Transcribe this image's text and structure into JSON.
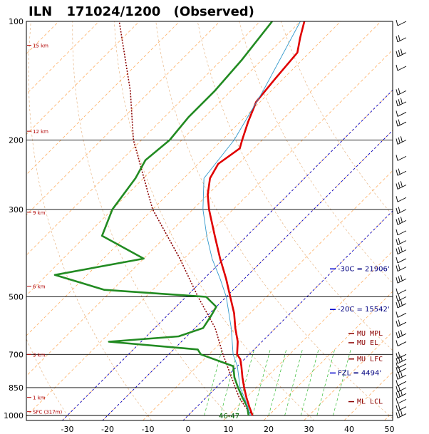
{
  "title": {
    "station": "ILN",
    "datetime": "171024/1200",
    "label": "(Observed)"
  },
  "chart_data": {
    "type": "line",
    "subtype": "skew-t log-p sounding",
    "pressure_axis": {
      "scale": "log",
      "range_hPa": [
        1000,
        100
      ],
      "isobar_lines": [
        1000,
        850,
        700,
        500,
        300,
        200
      ],
      "tick_labels": [
        "100",
        "200",
        "300",
        "500",
        "700",
        "850",
        "1000"
      ]
    },
    "temperature_axis": {
      "unit": "C",
      "range": [
        -40,
        50
      ],
      "tick_labels": [
        "-30",
        "-20",
        "-10",
        "0",
        "10",
        "20",
        "30",
        "40",
        "50"
      ]
    },
    "height_markers": [
      "SFC (317m)",
      "1 km",
      "3 km",
      "6 km",
      "9 km",
      "12 km",
      "15 km"
    ],
    "series": [
      {
        "color": "#e00000",
        "points": [
          {
            "p": 1000,
            "t": 16.0
          },
          {
            "p": 950,
            "t": 13.0
          },
          {
            "p": 900,
            "t": 10.0
          },
          {
            "p": 850,
            "t": 7.0
          },
          {
            "p": 800,
            "t": 4.0
          },
          {
            "p": 750,
            "t": 1.0
          },
          {
            "p": 720,
            "t": -1.0
          },
          {
            "p": 700,
            "t": -3.0
          },
          {
            "p": 650,
            "t": -6.0
          },
          {
            "p": 600,
            "t": -10.0
          },
          {
            "p": 550,
            "t": -14.0
          },
          {
            "p": 500,
            "t": -19.0
          },
          {
            "p": 450,
            "t": -24.5
          },
          {
            "p": 400,
            "t": -31.0
          },
          {
            "p": 350,
            "t": -38.0
          },
          {
            "p": 300,
            "t": -46.0
          },
          {
            "p": 275,
            "t": -50.0
          },
          {
            "p": 250,
            "t": -53.5
          },
          {
            "p": 230,
            "t": -55.0
          },
          {
            "p": 210,
            "t": -53.5
          },
          {
            "p": 200,
            "t": -55.0
          },
          {
            "p": 180,
            "t": -58.0
          },
          {
            "p": 160,
            "t": -61.0
          },
          {
            "p": 140,
            "t": -62.0
          },
          {
            "p": 120,
            "t": -63.0
          },
          {
            "p": 110,
            "t": -66.0
          },
          {
            "p": 100,
            "t": -69.0
          }
        ]
      },
      {
        "color": "#228b22",
        "points": [
          {
            "p": 1000,
            "t": 15.0
          },
          {
            "p": 950,
            "t": 12.5
          },
          {
            "p": 900,
            "t": 9.0
          },
          {
            "p": 850,
            "t": 5.5
          },
          {
            "p": 800,
            "t": 2.0
          },
          {
            "p": 750,
            "t": -1.0
          },
          {
            "p": 700,
            "t": -12.0
          },
          {
            "p": 680,
            "t": -14.0
          },
          {
            "p": 650,
            "t": -38.0
          },
          {
            "p": 630,
            "t": -22.0
          },
          {
            "p": 600,
            "t": -18.0
          },
          {
            "p": 560,
            "t": -19.0
          },
          {
            "p": 530,
            "t": -20.0
          },
          {
            "p": 500,
            "t": -25.0
          },
          {
            "p": 480,
            "t": -52.0
          },
          {
            "p": 440,
            "t": -68.0
          },
          {
            "p": 400,
            "t": -50.0
          },
          {
            "p": 350,
            "t": -66.0
          },
          {
            "p": 300,
            "t": -70.0
          },
          {
            "p": 250,
            "t": -72.0
          },
          {
            "p": 225,
            "t": -74.0
          },
          {
            "p": 200,
            "t": -73.0
          },
          {
            "p": 175,
            "t": -74.0
          },
          {
            "p": 150,
            "t": -74.0
          },
          {
            "p": 125,
            "t": -75.0
          },
          {
            "p": 100,
            "t": -77.0
          }
        ]
      },
      {
        "color": "#3399cc",
        "points": [
          {
            "p": 1000,
            "t": 15.5
          },
          {
            "p": 900,
            "t": 9.5
          },
          {
            "p": 850,
            "t": 6.0
          },
          {
            "p": 750,
            "t": 0.0
          },
          {
            "p": 700,
            "t": -4.0
          },
          {
            "p": 600,
            "t": -11.0
          },
          {
            "p": 500,
            "t": -20.0
          },
          {
            "p": 450,
            "t": -26.0
          },
          {
            "p": 400,
            "t": -33.0
          },
          {
            "p": 350,
            "t": -40.0
          },
          {
            "p": 300,
            "t": -47.5
          },
          {
            "p": 250,
            "t": -55.0
          },
          {
            "p": 200,
            "t": -57.0
          },
          {
            "p": 150,
            "t": -62.0
          },
          {
            "p": 100,
            "t": -70.0
          }
        ]
      }
    ],
    "parcel_trace": {
      "color": "#8b0000",
      "points": [
        {
          "p": 1000,
          "t": 16.0
        },
        {
          "p": 950,
          "t": 12.0
        },
        {
          "p": 900,
          "t": 8.2
        },
        {
          "p": 850,
          "t": 4.8
        },
        {
          "p": 800,
          "t": 1.3
        },
        {
          "p": 700,
          "t": -6.5
        },
        {
          "p": 600,
          "t": -15.0
        },
        {
          "p": 500,
          "t": -27.0
        },
        {
          "p": 400,
          "t": -41.0
        },
        {
          "p": 300,
          "t": -60.0
        },
        {
          "p": 200,
          "t": -82.0
        },
        {
          "p": 150,
          "t": -95.0
        },
        {
          "p": 100,
          "t": -115.0
        }
      ]
    },
    "freezing_lines": [
      {
        "temp_c": 0,
        "label": "FZL = 4494'",
        "label_p": 790
      },
      {
        "temp_c": -20,
        "label": "-20C = 15542'",
        "label_p": 545
      },
      {
        "temp_c": -30,
        "label": "-30C = 21906'",
        "label_p": 430
      }
    ],
    "parcel_levels": [
      {
        "label": "MU  MPL",
        "p": 627
      },
      {
        "label": "MU  EL",
        "p": 662
      },
      {
        "label": "MU  LFC",
        "p": 728
      },
      {
        "label": "ML  LCL",
        "p": 934
      }
    ],
    "annotations": [
      "46-47"
    ],
    "wind_barbs_hPa": [
      100,
      110,
      120,
      130,
      150,
      160,
      170,
      180,
      200,
      220,
      240,
      260,
      280,
      300,
      320,
      340,
      360,
      380,
      400,
      420,
      450,
      480,
      500,
      520,
      550,
      580,
      620,
      650,
      700,
      720,
      740,
      760,
      790,
      820,
      850,
      880,
      910,
      950,
      990
    ]
  }
}
